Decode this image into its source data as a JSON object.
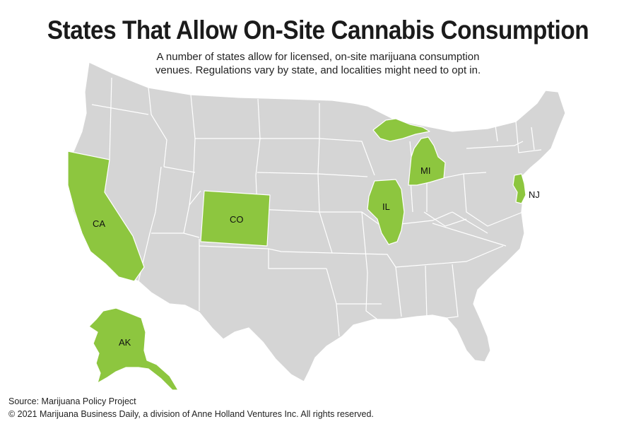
{
  "title": "States That Allow On-Site Cannabis Consumption",
  "subtitle": {
    "line1": "A number of states allow for licensed, on-site marijuana consumption",
    "line2": "venues. Regulations vary by state, and localities might need to opt in."
  },
  "colors": {
    "allowed": "#8dc63f",
    "other": "#d5d5d5",
    "border": "#ffffff"
  },
  "highlighted_states": [
    {
      "abbr": "CA",
      "label": "CA"
    },
    {
      "abbr": "CO",
      "label": "CO"
    },
    {
      "abbr": "IL",
      "label": "IL"
    },
    {
      "abbr": "MI",
      "label": "MI"
    },
    {
      "abbr": "NJ",
      "label": "NJ"
    },
    {
      "abbr": "AK",
      "label": "AK"
    }
  ],
  "footer": {
    "source": "Source: Marijuana Policy Project",
    "copyright": "© 2021 Marijuana Business Daily, a division of Anne Holland Ventures Inc. All rights reserved."
  }
}
